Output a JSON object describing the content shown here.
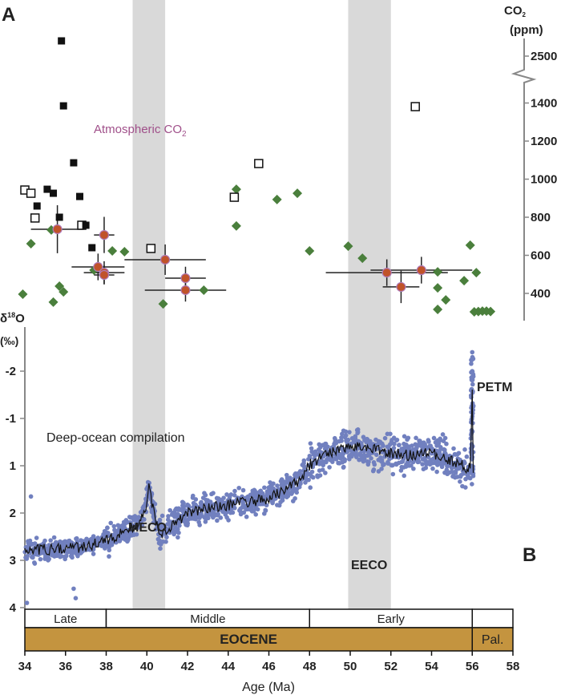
{
  "panel_a_label": "A",
  "panel_b_label": "B",
  "chart_data": [
    {
      "type": "scatter",
      "title": "Atmospheric CO2",
      "title_main": "Atmospheric CO",
      "title_sub": "2",
      "ylabel_main": "CO",
      "ylabel_sub": "2",
      "ylabel_unit": "(ppm)",
      "xlim": [
        34,
        58
      ],
      "ylim": [
        250,
        2700
      ],
      "axis_break": [
        1500,
        2400
      ],
      "yticks": [
        400,
        600,
        800,
        1000,
        1200,
        1400,
        2500
      ],
      "ytick_labels": [
        "400",
        "600",
        "800",
        "1000",
        "1200",
        "1400",
        "2500"
      ],
      "series": [
        {
          "name": "filled squares",
          "color": "#111111",
          "points": [
            [
              35.8,
              2580
            ],
            [
              35.9,
              1385
            ],
            [
              36.4,
              1086
            ],
            [
              35.1,
              947
            ],
            [
              35.4,
              926
            ],
            [
              36.7,
              909
            ],
            [
              34.6,
              859
            ],
            [
              35.7,
              800
            ],
            [
              37.0,
              758
            ],
            [
              37.3,
              640
            ]
          ]
        },
        {
          "name": "open squares",
          "color": "#111111",
          "points": [
            [
              34.0,
              943
            ],
            [
              34.3,
              926
            ],
            [
              34.5,
              796
            ],
            [
              36.8,
              758
            ],
            [
              40.2,
              636
            ],
            [
              44.3,
              905
            ],
            [
              45.5,
              1082
            ],
            [
              53.2,
              1381
            ]
          ]
        },
        {
          "name": "diamonds",
          "color": "#4a7f3c",
          "points": [
            [
              34.3,
              661
            ],
            [
              35.3,
              733
            ],
            [
              33.9,
              396
            ],
            [
              35.4,
              354
            ],
            [
              35.7,
              438
            ],
            [
              35.9,
              408
            ],
            [
              37.4,
              522
            ],
            [
              38.3,
              623
            ],
            [
              38.9,
              619
            ],
            [
              40.8,
              345
            ],
            [
              42.8,
              417
            ],
            [
              44.4,
              947
            ],
            [
              44.4,
              754
            ],
            [
              46.4,
              893
            ],
            [
              47.4,
              926
            ],
            [
              48.0,
              623
            ],
            [
              49.9,
              648
            ],
            [
              50.6,
              585
            ],
            [
              55.9,
              653
            ],
            [
              56.2,
              509
            ],
            [
              54.3,
              429
            ],
            [
              54.3,
              316
            ],
            [
              54.7,
              366
            ],
            [
              54.3,
              513
            ],
            [
              55.6,
              467
            ],
            [
              56.1,
              303
            ],
            [
              56.3,
              305
            ],
            [
              56.5,
              307
            ],
            [
              56.7,
              307
            ],
            [
              56.9,
              305
            ]
          ]
        },
        {
          "name": "circles with error bars",
          "color": "#c0532a",
          "points": [
            {
              "x": 35.6,
              "y": 737,
              "xerr": 1.3,
              "yerr": 126
            },
            {
              "x": 37.9,
              "y": 707,
              "xerr": 0.5,
              "yerr": 95
            },
            {
              "x": 37.6,
              "y": 539,
              "xerr": 1.3,
              "yerr": 70
            },
            {
              "x": 37.9,
              "y": 509,
              "xerr": 1.0,
              "yerr": 60
            },
            {
              "x": 37.9,
              "y": 497,
              "xerr": 0.5,
              "yerr": 50
            },
            {
              "x": 40.9,
              "y": 577,
              "xerr": 2.0,
              "yerr": 80
            },
            {
              "x": 41.9,
              "y": 480,
              "xerr": 1.0,
              "yerr": 60
            },
            {
              "x": 41.9,
              "y": 417,
              "xerr": 2.0,
              "yerr": 60
            },
            {
              "x": 51.8,
              "y": 509,
              "xerr": 3.0,
              "yerr": 70
            },
            {
              "x": 52.5,
              "y": 434,
              "xerr": 0.9,
              "yerr": 85
            },
            {
              "x": 53.5,
              "y": 522,
              "xerr": 2.5,
              "yerr": 70
            }
          ]
        }
      ]
    },
    {
      "type": "scatter",
      "title": "Deep-ocean compilation",
      "ylabel_main": "δ",
      "ylabel_sup": "18",
      "ylabel_o": "O",
      "ylabel_unit": "(‰)",
      "xlabel": "Age (Ma)",
      "xlim": [
        34,
        58
      ],
      "xticks": [
        34,
        36,
        38,
        40,
        42,
        44,
        46,
        48,
        50,
        52,
        54,
        56,
        58
      ],
      "xtick_labels": [
        "34",
        "36",
        "38",
        "40",
        "42",
        "44",
        "46",
        "48",
        "50",
        "52",
        "54",
        "56",
        "58"
      ],
      "yticks": [
        -2,
        -1,
        1,
        2,
        3,
        4
      ],
      "ytick_labels": [
        "-2",
        "-1",
        "1",
        "2",
        "3",
        "4"
      ],
      "y_inverted": true,
      "point_color": "#7180bf",
      "line_color": "#111111",
      "trend": [
        [
          34,
          2.8
        ],
        [
          35,
          2.77
        ],
        [
          36,
          2.76
        ],
        [
          37,
          2.7
        ],
        [
          38,
          2.59
        ],
        [
          39.5,
          2.25
        ],
        [
          39.9,
          2.0
        ],
        [
          40.1,
          1.41
        ],
        [
          40.3,
          1.9
        ],
        [
          40.6,
          2.42
        ],
        [
          41,
          2.34
        ],
        [
          42,
          2.0
        ],
        [
          43,
          1.9
        ],
        [
          44,
          1.83
        ],
        [
          45,
          1.76
        ],
        [
          46,
          1.69
        ],
        [
          47.5,
          1.32
        ],
        [
          48,
          0.97
        ],
        [
          49,
          0.46
        ],
        [
          50,
          0.12
        ],
        [
          51,
          0.29
        ],
        [
          52,
          0.46
        ],
        [
          53,
          0.56
        ],
        [
          54,
          0.46
        ],
        [
          55,
          0.8
        ],
        [
          55.9,
          1.07
        ],
        [
          56.0,
          -1.61
        ],
        [
          56.05,
          1.15
        ]
      ],
      "outliers": [
        [
          34.1,
          3.9
        ],
        [
          36.4,
          3.6
        ],
        [
          36.5,
          3.8
        ],
        [
          34.3,
          1.65
        ],
        [
          56.0,
          -2.4
        ],
        [
          56.0,
          -2.0
        ]
      ],
      "events": [
        {
          "label": "MECO",
          "start": 39.3,
          "end": 40.9
        },
        {
          "label": "EECO",
          "start": 49.9,
          "end": 52.0
        },
        {
          "label": "PETM",
          "age": 56.0
        }
      ]
    }
  ],
  "timescale": {
    "epochs": [
      {
        "label": "EOCENE",
        "start": 34,
        "end": 56,
        "color": "#c4943f"
      },
      {
        "label": "Pal.",
        "start": 56,
        "end": 58,
        "color": "#c4943f"
      }
    ],
    "subepochs": [
      {
        "label": "Late",
        "start": 34,
        "end": 38
      },
      {
        "label": "Middle",
        "start": 38,
        "end": 48
      },
      {
        "label": "Early",
        "start": 48,
        "end": 56
      },
      {
        "label": "",
        "start": 56,
        "end": 58
      }
    ]
  }
}
